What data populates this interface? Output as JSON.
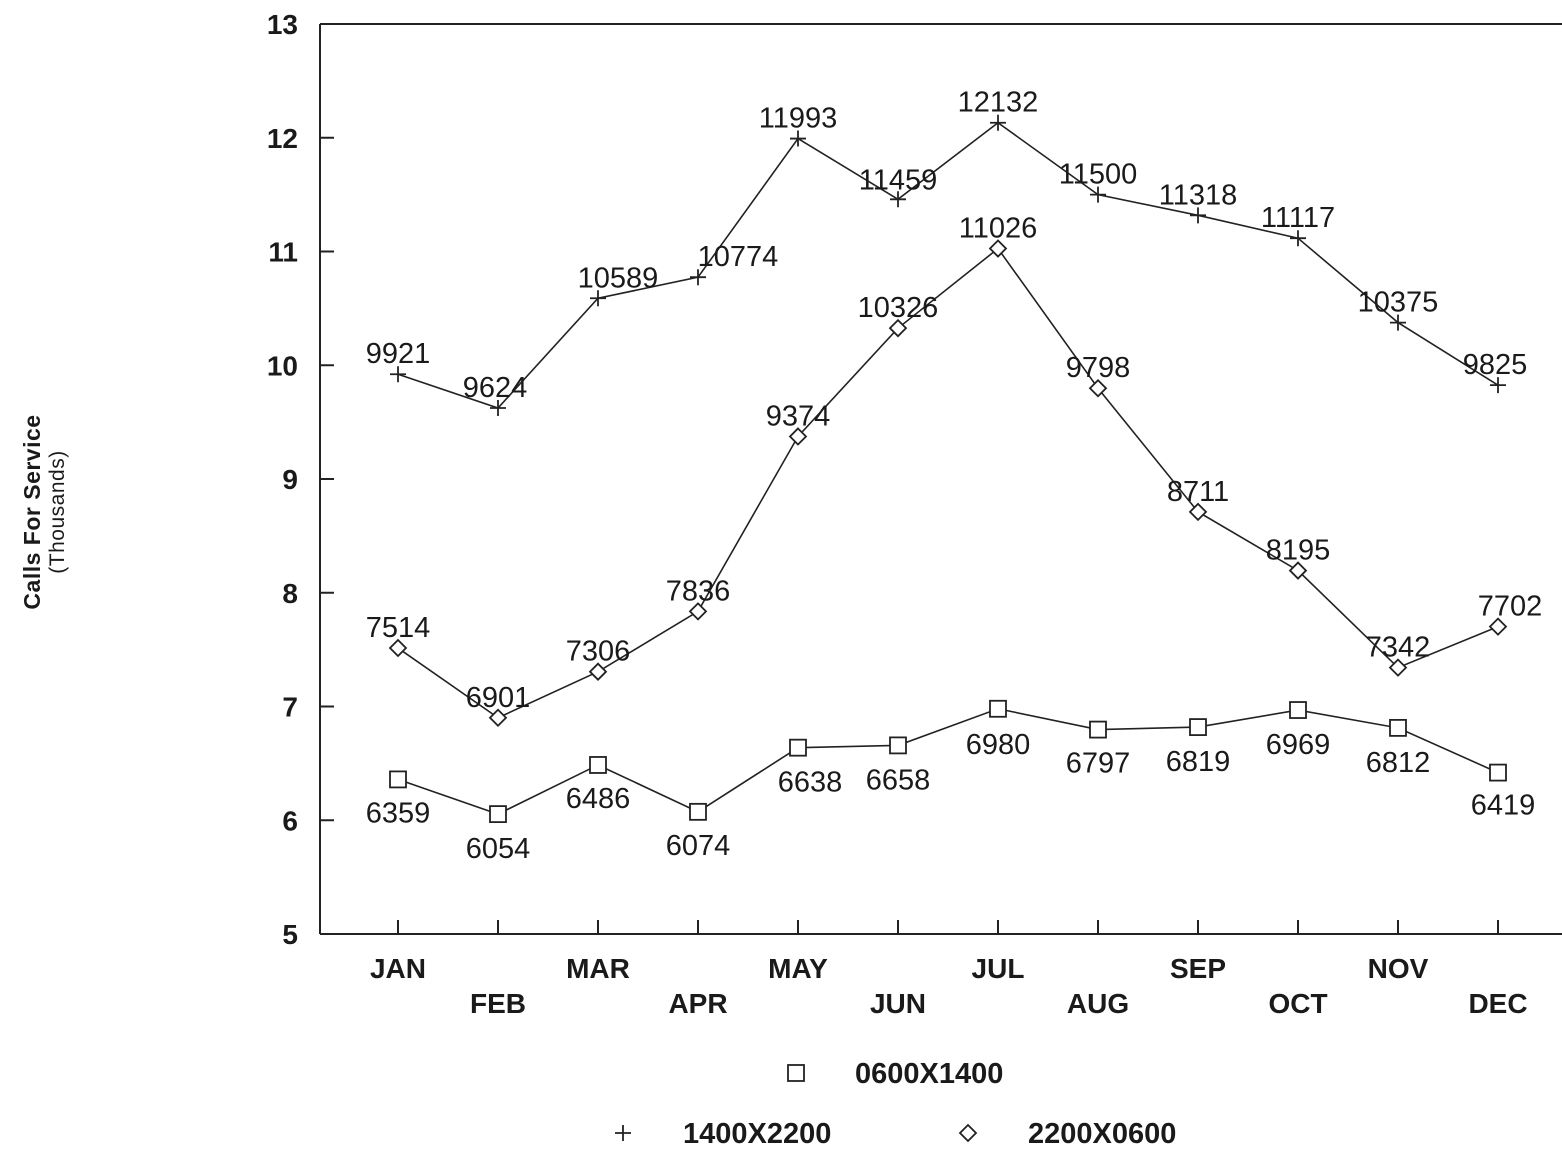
{
  "chart_data": {
    "type": "line",
    "ylabel": "Calls For Service",
    "ylabel_sub": "(Thousands)",
    "xlabel": "",
    "ylim": [
      5,
      13
    ],
    "yticks": [
      "5",
      "6",
      "7",
      "8",
      "9",
      "10",
      "11",
      "12",
      "13"
    ],
    "categories": [
      "JAN",
      "FEB",
      "MAR",
      "APR",
      "MAY",
      "JUN",
      "JUL",
      "AUG",
      "SEP",
      "OCT",
      "NOV",
      "DEC"
    ],
    "grid": false,
    "legend_position": "bottom-center",
    "series": [
      {
        "name": "0600X1400",
        "marker": "square",
        "values": [
          6359,
          6054,
          6486,
          6074,
          6638,
          6658,
          6980,
          6797,
          6819,
          6969,
          6812,
          6419
        ]
      },
      {
        "name": "1400X2200",
        "marker": "plus",
        "values": [
          9921,
          9624,
          10589,
          10774,
          11993,
          11459,
          12132,
          11500,
          11318,
          11117,
          10375,
          9825
        ]
      },
      {
        "name": "2200X0600",
        "marker": "diamond",
        "values": [
          7514,
          6901,
          7306,
          7836,
          9374,
          10326,
          11026,
          9798,
          8711,
          8195,
          7342,
          7702
        ]
      }
    ]
  }
}
